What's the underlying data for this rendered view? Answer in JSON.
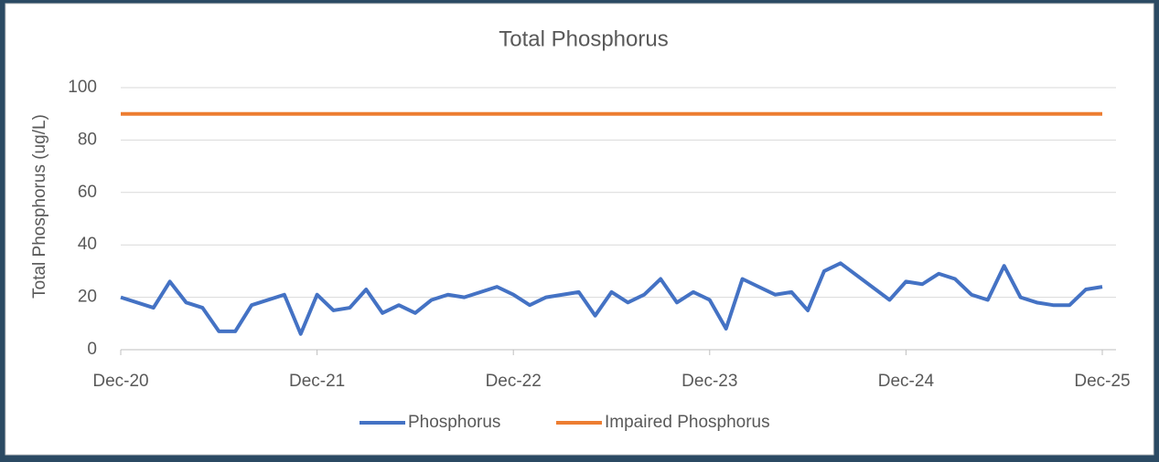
{
  "chart_data": {
    "type": "line",
    "title": "Total Phosphorus",
    "y_label": "Total Phosphorus (ug/L)",
    "ylim": [
      0,
      100
    ],
    "yticks": [
      0,
      20,
      40,
      60,
      80,
      100
    ],
    "grid": true,
    "legend": "bottom",
    "xlim": [
      "2020-12",
      "2025-12"
    ],
    "xticks": [
      {
        "value": "2020-12",
        "label": "Dec-20"
      },
      {
        "value": "2021-12",
        "label": "Dec-21"
      },
      {
        "value": "2022-12",
        "label": "Dec-22"
      },
      {
        "value": "2023-12",
        "label": "Dec-23"
      },
      {
        "value": "2024-12",
        "label": "Dec-24"
      },
      {
        "value": "2025-12",
        "label": "Dec-25"
      }
    ],
    "series": [
      {
        "name": "Phosphorus",
        "color": "#4472c4",
        "x": [
          "2020-12",
          "2021-02",
          "2021-03",
          "2021-04",
          "2021-05",
          "2021-06",
          "2021-07",
          "2021-08",
          "2021-10",
          "2021-11",
          "2021-12",
          "2022-01",
          "2022-02",
          "2022-03",
          "2022-04",
          "2022-05",
          "2022-06",
          "2022-07",
          "2022-08",
          "2022-09",
          "2022-11",
          "2022-12",
          "2023-01",
          "2023-02",
          "2023-03",
          "2023-04",
          "2023-05",
          "2023-06",
          "2023-07",
          "2023-08",
          "2023-09",
          "2023-10",
          "2023-11",
          "2023-12",
          "2024-01",
          "2024-02",
          "2024-03",
          "2024-04",
          "2024-05",
          "2024-06",
          "2024-07",
          "2024-08",
          "2024-11",
          "2024-12",
          "2025-01",
          "2025-02",
          "2025-03",
          "2025-04",
          "2025-05",
          "2025-06",
          "2025-07",
          "2025-08",
          "2025-09",
          "2025-10",
          "2025-11",
          "2025-12"
        ],
        "values": [
          20,
          16,
          26,
          18,
          16,
          7,
          7,
          17,
          21,
          6,
          21,
          15,
          16,
          23,
          14,
          17,
          14,
          19,
          21,
          20,
          24,
          21,
          17,
          20,
          21,
          22,
          13,
          22,
          18,
          21,
          27,
          18,
          22,
          19,
          8,
          27,
          24,
          21,
          22,
          15,
          30,
          33,
          19,
          26,
          25,
          29,
          27,
          21,
          19,
          32,
          20,
          18,
          17,
          17,
          23,
          24
        ]
      },
      {
        "name": "Impaired Phosphorus",
        "color": "#ed7d31",
        "x": [
          "2020-12",
          "2025-12"
        ],
        "values": [
          90,
          90
        ]
      }
    ]
  }
}
